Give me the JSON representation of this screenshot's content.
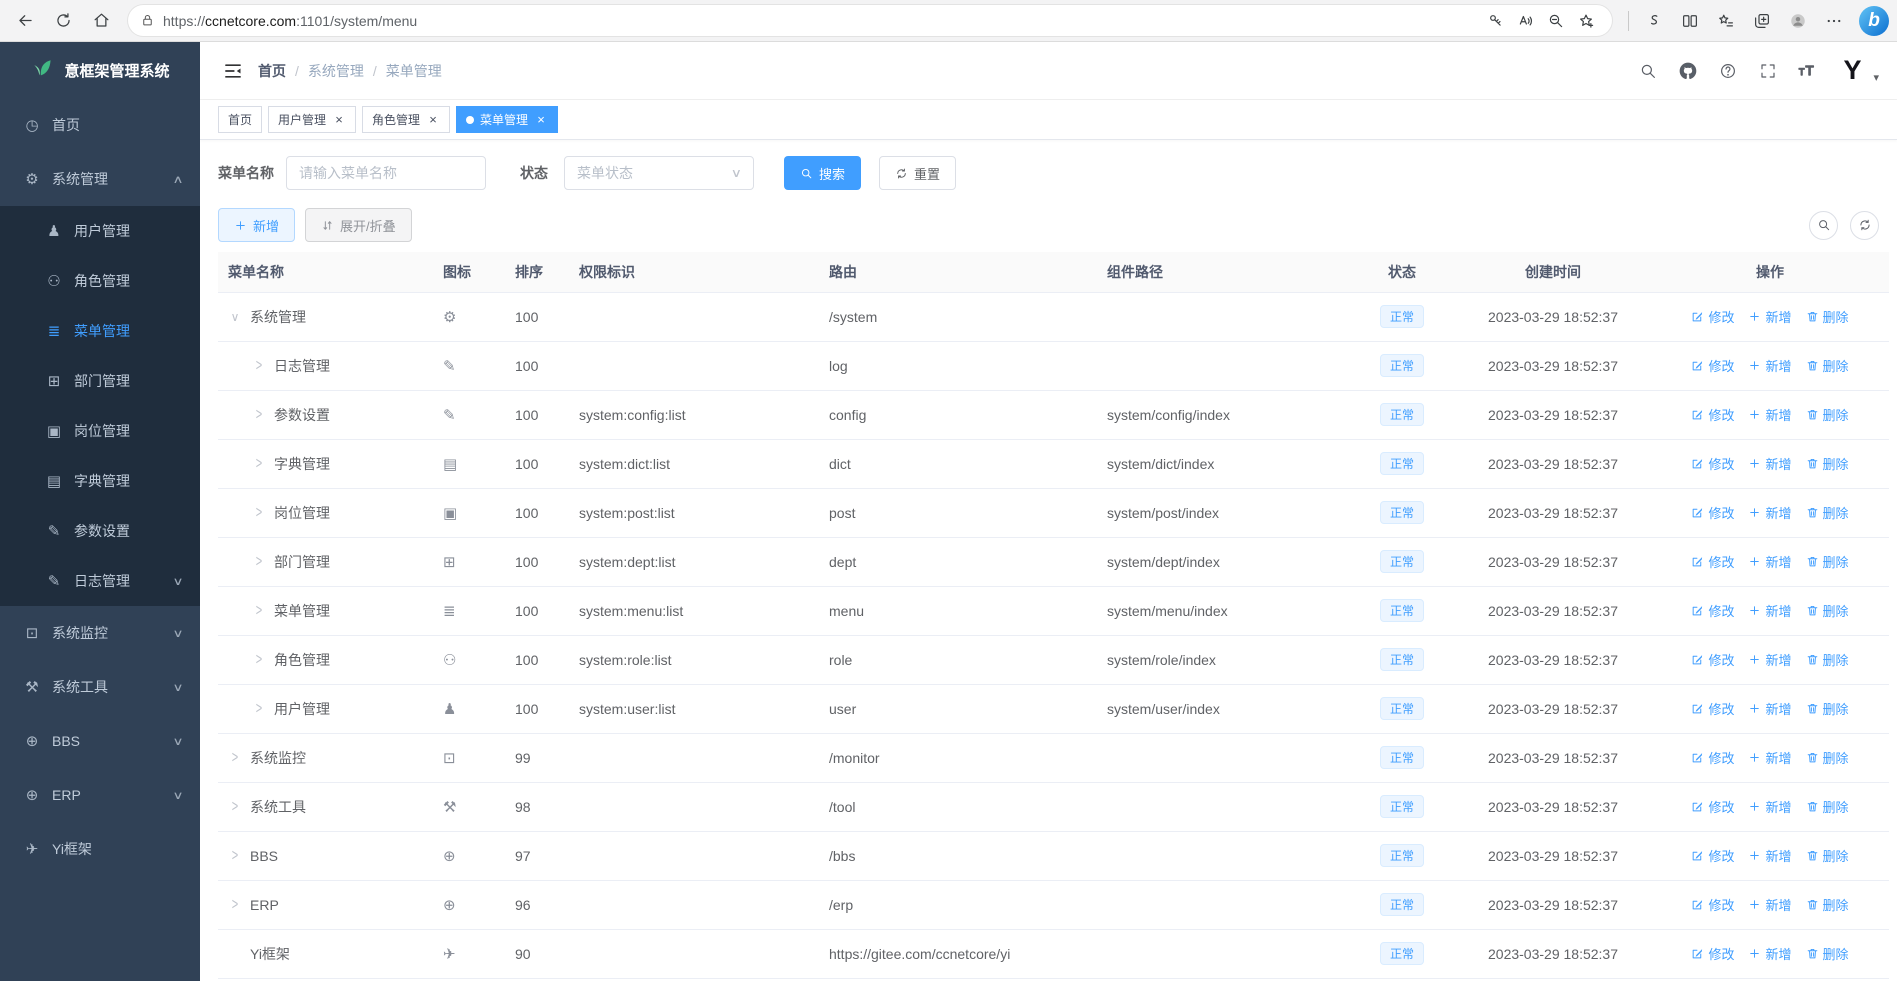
{
  "browser": {
    "url_scheme": "https://",
    "url_domain": "ccnetcore.com",
    "url_path": ":1101/system/menu",
    "left_icons": [
      "back-icon",
      "refresh-icon",
      "home-icon"
    ],
    "pill_icons": [
      "key-icon",
      "read-aloud-icon",
      "zoom-out-icon",
      "add-favorite-icon"
    ],
    "right_icons": [
      "browser-essentials-icon",
      "split-screen-icon",
      "favorites-icon",
      "collections-icon",
      "profile-avatar",
      "more-icon"
    ],
    "bing_label": "b"
  },
  "sidebar": {
    "logo": "意框架管理系统",
    "items": [
      {
        "label": "首页",
        "icon": "dashboard-icon",
        "depth": "top",
        "chevron": null,
        "active": false
      },
      {
        "label": "系统管理",
        "icon": "gear-icon",
        "depth": "top",
        "chevron": "up",
        "active": false
      },
      {
        "label": "用户管理",
        "icon": "user-icon",
        "depth": "sub",
        "chevron": null,
        "active": false
      },
      {
        "label": "角色管理",
        "icon": "users-icon",
        "depth": "sub",
        "chevron": null,
        "active": false
      },
      {
        "label": "菜单管理",
        "icon": "menu-icon",
        "depth": "sub",
        "chevron": null,
        "active": true
      },
      {
        "label": "部门管理",
        "icon": "dept-icon",
        "depth": "sub",
        "chevron": null,
        "active": false
      },
      {
        "label": "岗位管理",
        "icon": "post-icon",
        "depth": "sub",
        "chevron": null,
        "active": false
      },
      {
        "label": "字典管理",
        "icon": "dict-icon",
        "depth": "sub",
        "chevron": null,
        "active": false
      },
      {
        "label": "参数设置",
        "icon": "edit-icon",
        "depth": "sub",
        "chevron": null,
        "active": false
      },
      {
        "label": "日志管理",
        "icon": "log-icon",
        "depth": "sub",
        "chevron": "down",
        "active": false
      },
      {
        "label": "系统监控",
        "icon": "monitor-icon",
        "depth": "top",
        "chevron": "down",
        "active": false
      },
      {
        "label": "系统工具",
        "icon": "tool-icon",
        "depth": "top",
        "chevron": "down",
        "active": false
      },
      {
        "label": "BBS",
        "icon": "globe-icon",
        "depth": "top",
        "chevron": "down",
        "active": false
      },
      {
        "label": "ERP",
        "icon": "globe-icon",
        "depth": "top",
        "chevron": "down",
        "active": false
      },
      {
        "label": "Yi框架",
        "icon": "send-icon",
        "depth": "top",
        "chevron": null,
        "active": false
      }
    ]
  },
  "header": {
    "breadcrumb": [
      "首页",
      "系统管理",
      "菜单管理"
    ],
    "separator": "/",
    "icons": [
      "search-icon",
      "github-icon",
      "help-icon",
      "fullscreen-icon",
      "font-size-icon"
    ],
    "avatar_label": "Y",
    "caret": "▾"
  },
  "tabs": [
    {
      "label": "首页",
      "closable": false,
      "active": false
    },
    {
      "label": "用户管理",
      "closable": true,
      "active": false
    },
    {
      "label": "角色管理",
      "closable": true,
      "active": false
    },
    {
      "label": "菜单管理",
      "closable": true,
      "active": true
    }
  ],
  "filters": {
    "name_label": "菜单名称",
    "name_placeholder": "请输入菜单名称",
    "name_value": "",
    "status_label": "状态",
    "status_placeholder": "菜单状态",
    "search_label": "搜索",
    "reset_label": "重置"
  },
  "toolbar": {
    "add_label": "新增",
    "toggle_label": "展开/折叠",
    "right_icons": [
      "search-circle-icon",
      "refresh-circle-icon"
    ]
  },
  "table": {
    "columns": [
      "菜单名称",
      "图标",
      "排序",
      "权限标识",
      "路由",
      "组件路径",
      "状态",
      "创建时间",
      "操作"
    ],
    "action_labels": {
      "edit": "修改",
      "add": "新增",
      "delete": "删除"
    },
    "rows": [
      {
        "name": "系统管理",
        "icon": "gear-icon",
        "arrow": "down",
        "level": 0,
        "sort": "100",
        "perms": "",
        "route": "/system",
        "component": "",
        "status": "正常",
        "created": "2023-03-29 18:52:37"
      },
      {
        "name": "日志管理",
        "icon": "log-icon",
        "arrow": "right",
        "level": 1,
        "sort": "100",
        "perms": "",
        "route": "log",
        "component": "",
        "status": "正常",
        "created": "2023-03-29 18:52:37"
      },
      {
        "name": "参数设置",
        "icon": "edit-icon",
        "arrow": "right",
        "level": 1,
        "sort": "100",
        "perms": "system:config:list",
        "route": "config",
        "component": "system/config/index",
        "status": "正常",
        "created": "2023-03-29 18:52:37"
      },
      {
        "name": "字典管理",
        "icon": "dict-icon",
        "arrow": "right",
        "level": 1,
        "sort": "100",
        "perms": "system:dict:list",
        "route": "dict",
        "component": "system/dict/index",
        "status": "正常",
        "created": "2023-03-29 18:52:37"
      },
      {
        "name": "岗位管理",
        "icon": "post-icon",
        "arrow": "right",
        "level": 1,
        "sort": "100",
        "perms": "system:post:list",
        "route": "post",
        "component": "system/post/index",
        "status": "正常",
        "created": "2023-03-29 18:52:37"
      },
      {
        "name": "部门管理",
        "icon": "dept-icon",
        "arrow": "right",
        "level": 1,
        "sort": "100",
        "perms": "system:dept:list",
        "route": "dept",
        "component": "system/dept/index",
        "status": "正常",
        "created": "2023-03-29 18:52:37"
      },
      {
        "name": "菜单管理",
        "icon": "menu-icon",
        "arrow": "right",
        "level": 1,
        "sort": "100",
        "perms": "system:menu:list",
        "route": "menu",
        "component": "system/menu/index",
        "status": "正常",
        "created": "2023-03-29 18:52:37"
      },
      {
        "name": "角色管理",
        "icon": "users-icon",
        "arrow": "right",
        "level": 1,
        "sort": "100",
        "perms": "system:role:list",
        "route": "role",
        "component": "system/role/index",
        "status": "正常",
        "created": "2023-03-29 18:52:37"
      },
      {
        "name": "用户管理",
        "icon": "user-icon",
        "arrow": "right",
        "level": 1,
        "sort": "100",
        "perms": "system:user:list",
        "route": "user",
        "component": "system/user/index",
        "status": "正常",
        "created": "2023-03-29 18:52:37"
      },
      {
        "name": "系统监控",
        "icon": "monitor-icon",
        "arrow": "right",
        "level": 0,
        "sort": "99",
        "perms": "",
        "route": "/monitor",
        "component": "",
        "status": "正常",
        "created": "2023-03-29 18:52:37"
      },
      {
        "name": "系统工具",
        "icon": "tool-icon",
        "arrow": "right",
        "level": 0,
        "sort": "98",
        "perms": "",
        "route": "/tool",
        "component": "",
        "status": "正常",
        "created": "2023-03-29 18:52:37"
      },
      {
        "name": "BBS",
        "icon": "globe-icon",
        "arrow": "right",
        "level": 0,
        "sort": "97",
        "perms": "",
        "route": "/bbs",
        "component": "",
        "status": "正常",
        "created": "2023-03-29 18:52:37"
      },
      {
        "name": "ERP",
        "icon": "globe-icon",
        "arrow": "right",
        "level": 0,
        "sort": "96",
        "perms": "",
        "route": "/erp",
        "component": "",
        "status": "正常",
        "created": "2023-03-29 18:52:37"
      },
      {
        "name": "Yi框架",
        "icon": "send-icon",
        "arrow": null,
        "level": 0,
        "sort": "90",
        "perms": "",
        "route": "https://gitee.com/ccnetcore/yi",
        "component": "",
        "status": "正常",
        "created": "2023-03-29 18:52:37"
      }
    ]
  },
  "colors": {
    "accent": "#409eff",
    "sidebar_bg": "#304156",
    "submenu_bg": "#1f2d3d",
    "status_badge_bg": "#ecf5ff",
    "status_badge_text": "#409eff",
    "leaf_green": "#41b883"
  }
}
